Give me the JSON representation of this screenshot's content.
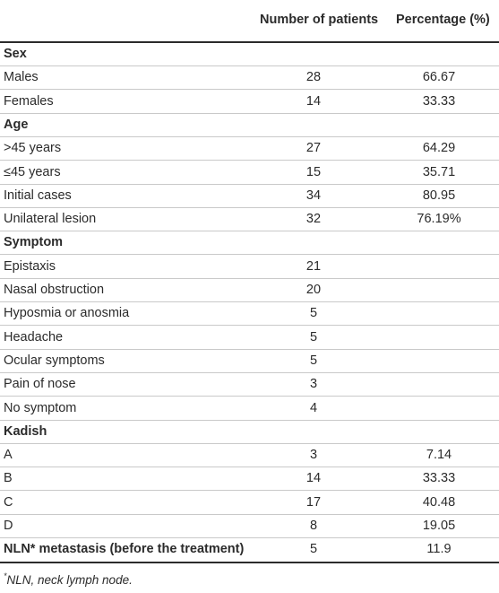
{
  "table": {
    "columns": [
      "",
      "Number of patients",
      "Percentage (%)"
    ],
    "rows": [
      {
        "label": "Sex",
        "section": true,
        "count": "",
        "pct": ""
      },
      {
        "label": "Males",
        "section": false,
        "count": "28",
        "pct": "66.67"
      },
      {
        "label": "Females",
        "section": false,
        "count": "14",
        "pct": "33.33"
      },
      {
        "label": "Age",
        "section": true,
        "count": "",
        "pct": ""
      },
      {
        "label": ">45 years",
        "section": false,
        "count": "27",
        "pct": "64.29"
      },
      {
        "label": "≤45 years",
        "section": false,
        "count": "15",
        "pct": "35.71"
      },
      {
        "label": "Initial cases",
        "section": false,
        "count": "34",
        "pct": "80.95"
      },
      {
        "label": "Unilateral lesion",
        "section": false,
        "count": "32",
        "pct": "76.19%"
      },
      {
        "label": "Symptom",
        "section": true,
        "count": "",
        "pct": ""
      },
      {
        "label": "Epistaxis",
        "section": false,
        "count": "21",
        "pct": ""
      },
      {
        "label": "Nasal obstruction",
        "section": false,
        "count": "20",
        "pct": ""
      },
      {
        "label": "Hyposmia or anosmia",
        "section": false,
        "count": "5",
        "pct": ""
      },
      {
        "label": "Headache",
        "section": false,
        "count": "5",
        "pct": ""
      },
      {
        "label": "Ocular symptoms",
        "section": false,
        "count": "5",
        "pct": ""
      },
      {
        "label": "Pain of nose",
        "section": false,
        "count": "3",
        "pct": ""
      },
      {
        "label": "No symptom",
        "section": false,
        "count": "4",
        "pct": ""
      },
      {
        "label": "Kadish",
        "section": true,
        "count": "",
        "pct": ""
      },
      {
        "label": "A",
        "section": false,
        "count": "3",
        "pct": "7.14"
      },
      {
        "label": "B",
        "section": false,
        "count": "14",
        "pct": "33.33"
      },
      {
        "label": "C",
        "section": false,
        "count": "17",
        "pct": "40.48"
      },
      {
        "label": "D",
        "section": false,
        "count": "8",
        "pct": "19.05"
      },
      {
        "label": "NLN* metastasis (before the treatment)",
        "section": true,
        "count": "5",
        "pct": "11.9"
      }
    ]
  },
  "footnote": {
    "marker": "*",
    "text": "NLN, neck lymph node."
  }
}
